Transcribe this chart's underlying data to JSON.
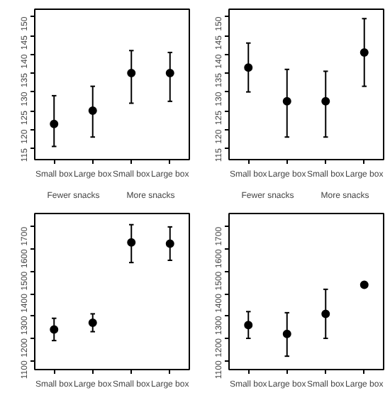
{
  "chart_data": [
    {
      "type": "scatter",
      "categories": [
        "Small box",
        "Large box",
        "Small box",
        "Large box"
      ],
      "values": [
        121.5,
        125,
        135,
        135
      ],
      "errors": [
        [
          115.5,
          129
        ],
        [
          118,
          131.5
        ],
        [
          127,
          141
        ],
        [
          127.5,
          140.5
        ]
      ],
      "ylim": [
        112,
        152
      ],
      "yticks": [
        115,
        120,
        125,
        130,
        135,
        140,
        145,
        150
      ],
      "marker": "circle",
      "grid": false,
      "annotations": [
        "Fewer snacks",
        "More snacks"
      ]
    },
    {
      "type": "scatter",
      "categories": [
        "Small box",
        "Large box",
        "Small box",
        "Large box"
      ],
      "values": [
        136.5,
        127.5,
        127.5,
        140.5
      ],
      "errors": [
        [
          130,
          143
        ],
        [
          118,
          136
        ],
        [
          118,
          135.5
        ],
        [
          131.5,
          149.5
        ]
      ],
      "ylim": [
        112,
        152
      ],
      "yticks": [
        115,
        120,
        125,
        130,
        135,
        140,
        145,
        150
      ],
      "marker": "circle",
      "grid": false,
      "annotations": [
        "Fewer snacks",
        "More snacks"
      ]
    },
    {
      "type": "scatter",
      "categories": [
        "Small box",
        "Large box",
        "Small box",
        "Large box"
      ],
      "values": [
        1240,
        1270,
        1630,
        1625
      ],
      "errors": [
        [
          1190,
          1290
        ],
        [
          1230,
          1310
        ],
        [
          1540,
          1710
        ],
        [
          1550,
          1700
        ]
      ],
      "ylim": [
        1060,
        1760
      ],
      "yticks": [
        1100,
        1200,
        1300,
        1400,
        1500,
        1600,
        1700
      ],
      "marker": "circle",
      "grid": false
    },
    {
      "type": "scatter",
      "categories": [
        "Small box",
        "Large box",
        "Small box",
        "Large box"
      ],
      "values": [
        1260,
        1220,
        1310,
        1440
      ],
      "errors": [
        [
          1200,
          1320
        ],
        [
          1120,
          1315
        ],
        [
          1200,
          1420
        ],
        null
      ],
      "ylim": [
        1060,
        1760
      ],
      "yticks": [
        1100,
        1200,
        1300,
        1400,
        1500,
        1600,
        1700
      ],
      "marker": "circle",
      "grid": false
    }
  ]
}
